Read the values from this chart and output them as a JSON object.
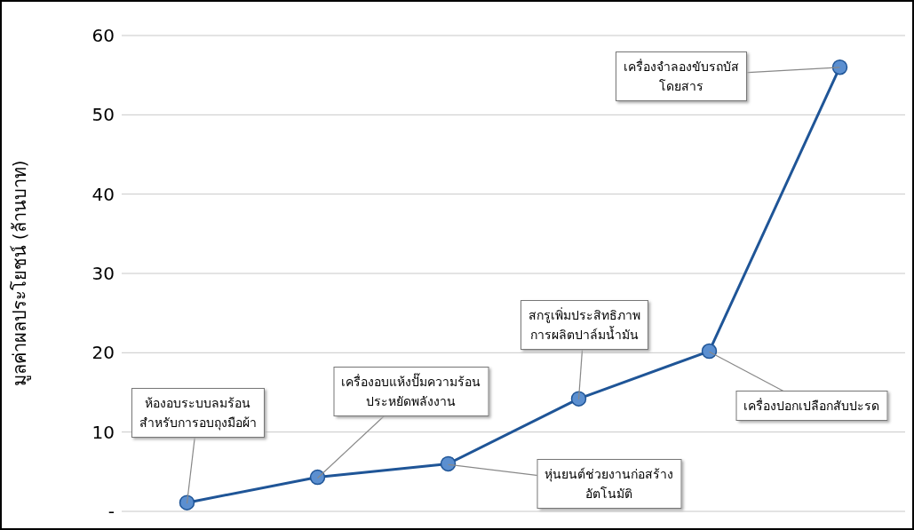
{
  "chart_data": {
    "type": "line",
    "ylabel": "มูลค่าผลประโยชน์ (ล้านบาท)",
    "categories": [
      null,
      null,
      null,
      null,
      null,
      null
    ],
    "series": [
      {
        "color": "#1f5597",
        "values": [
          1.1,
          4.3,
          6.0,
          14.2,
          20.2,
          56
        ]
      }
    ],
    "ylim": [
      0,
      60
    ],
    "yticks": [
      {
        "value": 0,
        "label": "-"
      },
      10,
      20,
      30,
      40,
      50,
      60
    ],
    "grid": "y",
    "marker": "circle",
    "line_style": "solid",
    "tick_labels": "y",
    "annotations": [
      "ห้องอบระบบลมร้อน\nสำหรับการอบถุงมือผ้า",
      "เครื่องอบแห้งปั๊มความร้อน\nประหยัดพลังงาน",
      "หุ่นยนต์ช่วยงานก่อสร้าง\nอัตโนมัติ",
      "สกรูเพิ่มประสิทธิภาพ\nการผลิตปาล์มน้ำมัน",
      "เครื่องปอกเปลือกสับปะรด",
      "เครื่องจำลองขับรถบัส\nโดยสาร"
    ]
  }
}
